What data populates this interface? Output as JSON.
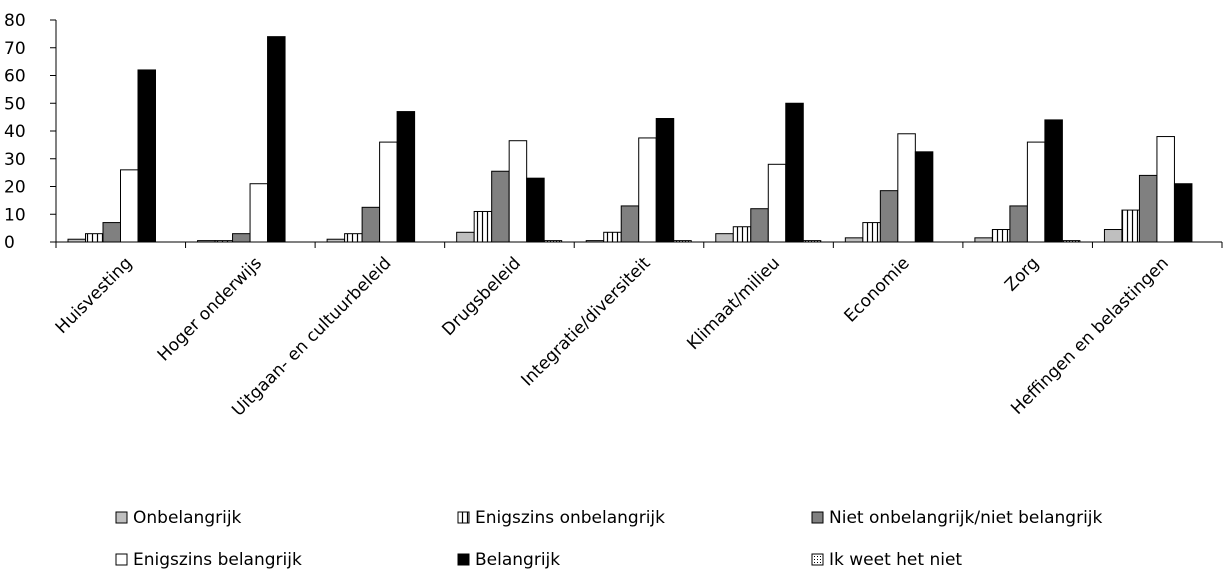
{
  "chart_data": {
    "type": "bar",
    "title": "",
    "xlabel": "",
    "ylabel": "",
    "ylim": [
      0,
      80
    ],
    "yticks": [
      0,
      10,
      20,
      30,
      40,
      50,
      60,
      70,
      80
    ],
    "yticks_labels": [
      "0",
      "10",
      "20",
      "30",
      "40",
      "50",
      "60",
      "70",
      "80"
    ],
    "grid": false,
    "legend_position": "bottom",
    "categories": [
      "Huisvesting",
      "Hoger onderwijs",
      "Uitgaan- en cultuurbeleid",
      "Drugsbeleid",
      "Integratie/diversiteit",
      "Klimaat/milieu",
      "Economie",
      "Zorg",
      "Heffingen en belastingen"
    ],
    "series": [
      {
        "name": "Onbelangrijk",
        "pattern": "light-gray",
        "color": "#bfbfbf",
        "values": [
          1,
          0.5,
          1,
          3.5,
          0.5,
          3,
          1.5,
          1.5,
          4.5
        ]
      },
      {
        "name": "Enigszins onbelangrijk",
        "pattern": "vertical-stripes",
        "color": "#ffffff",
        "values": [
          3,
          0.5,
          3,
          11,
          3.5,
          5.5,
          7,
          4.5,
          11.5
        ]
      },
      {
        "name": "Niet onbelangrijk/niet belangrijk",
        "pattern": "gray",
        "color": "#808080",
        "values": [
          7,
          3,
          12.5,
          25.5,
          13,
          12,
          18.5,
          13,
          24
        ]
      },
      {
        "name": "Enigszins belangrijk",
        "pattern": "white",
        "color": "#ffffff",
        "values": [
          26,
          21,
          36,
          36.5,
          37.5,
          28,
          39,
          36,
          38
        ]
      },
      {
        "name": "Belangrijk",
        "pattern": "black",
        "color": "#000000",
        "values": [
          62,
          74,
          47,
          23,
          44.5,
          50,
          32.5,
          44,
          21
        ]
      },
      {
        "name": "Ik weet het niet",
        "pattern": "dotted",
        "color": "#ffffff",
        "values": [
          0,
          0,
          0,
          0.5,
          0.5,
          0.5,
          0,
          0.5,
          0
        ]
      }
    ]
  }
}
